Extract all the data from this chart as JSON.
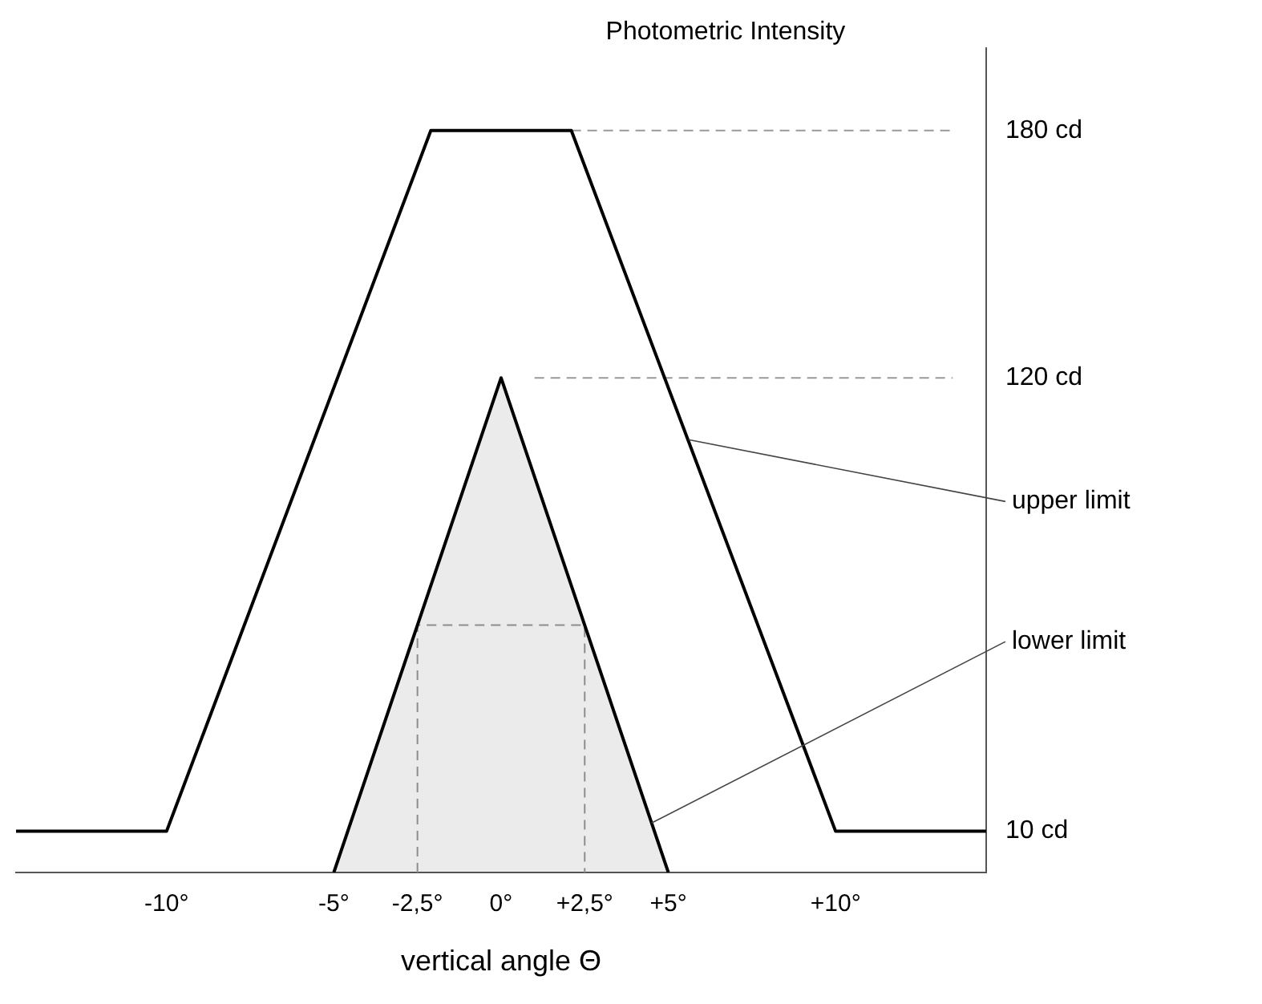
{
  "chart_data": {
    "type": "line",
    "ylabel": "Photometric Intensity",
    "xlabel": "vertical angle Θ",
    "xlim": [
      -14.5,
      14.5
    ],
    "ylim": [
      0,
      200
    ],
    "xticks": [
      {
        "value": -10,
        "label": "-10°"
      },
      {
        "value": -5,
        "label": "-5°"
      },
      {
        "value": -2.5,
        "label": "-2,5°"
      },
      {
        "value": 0,
        "label": "0°"
      },
      {
        "value": 2.5,
        "label": "+2,5°"
      },
      {
        "value": 5,
        "label": "+5°"
      },
      {
        "value": 10,
        "label": "+10°"
      }
    ],
    "yticks": [
      {
        "value": 10,
        "label": "10 cd"
      },
      {
        "value": 120,
        "label": "120 cd"
      },
      {
        "value": 180,
        "label": "180 cd"
      }
    ],
    "grid": false,
    "legend": false,
    "marker": "none",
    "series": [
      {
        "color": "#000000",
        "x": [
          -14.5,
          -10,
          -2.1,
          2.1,
          10,
          14.5
        ],
        "values": [
          10,
          10,
          180,
          180,
          10,
          10
        ]
      },
      {
        "type": "area",
        "color": "#000000",
        "x": [
          -5,
          0,
          5
        ],
        "values": [
          0,
          120,
          0
        ]
      },
      {
        "color": "#999999",
        "line_style": "dashed",
        "x": [
          2.1,
          13.5
        ],
        "values": [
          180,
          180
        ]
      },
      {
        "color": "#999999",
        "line_style": "dashed",
        "x": [
          1,
          13.5
        ],
        "values": [
          120,
          120
        ]
      },
      {
        "color": "#999999",
        "line_style": "dashed",
        "x": [
          -2.5,
          -2.5,
          2.5,
          2.5
        ],
        "values": [
          0,
          60,
          60,
          0
        ]
      }
    ],
    "annotations": [
      {
        "text": "upper limit",
        "x": 5.6,
        "y": 105
      },
      {
        "text": "lower limit",
        "x": 4.5,
        "y": 12
      }
    ]
  }
}
